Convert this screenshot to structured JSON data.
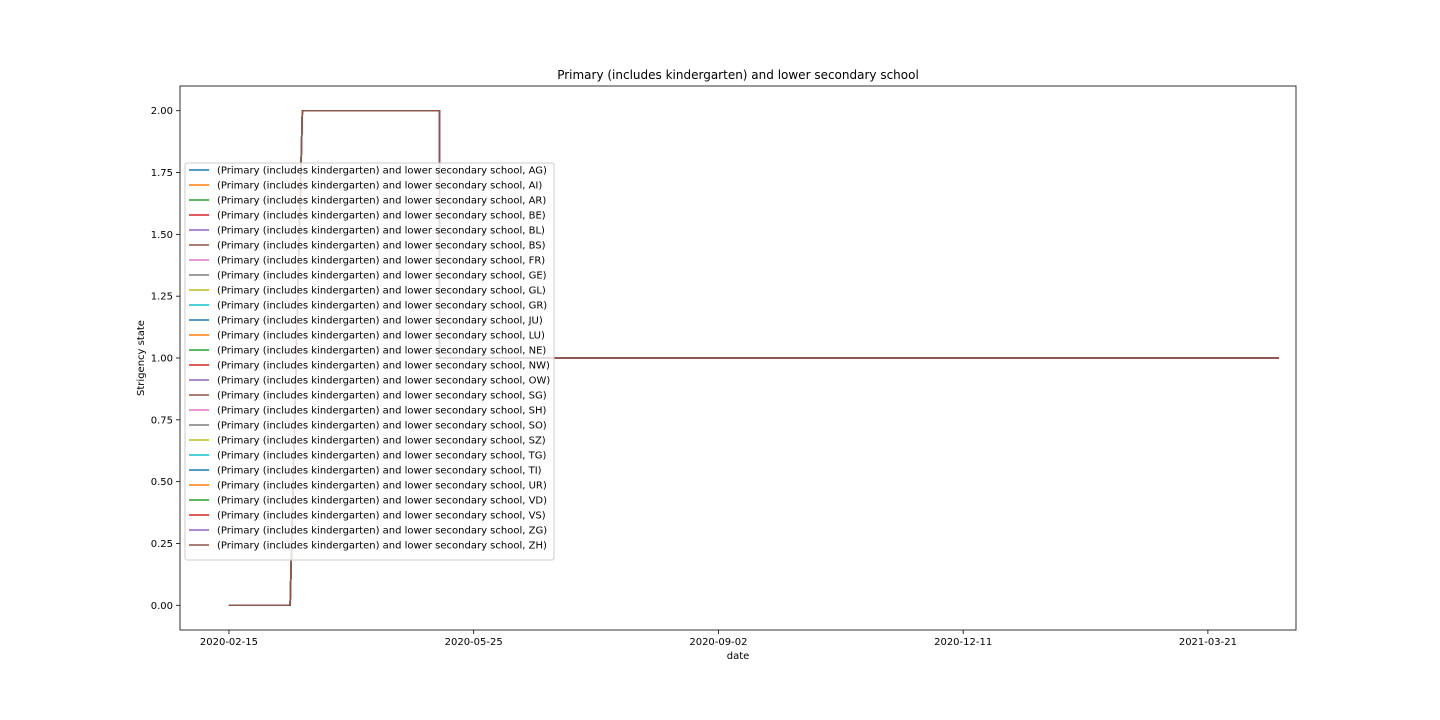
{
  "chart_data": {
    "type": "line",
    "title": "Primary (includes kindergarten) and lower secondary school",
    "xlabel": "date",
    "ylabel": "Strigency state",
    "x_ticks": [
      "2020-02-15",
      "2020-05-25",
      "2020-09-02",
      "2020-12-11",
      "2021-03-21"
    ],
    "y_ticks": [
      "0.00",
      "0.25",
      "0.50",
      "0.75",
      "1.00",
      "1.25",
      "1.50",
      "1.75",
      "2.00"
    ],
    "xlim": [
      "2020-01-26",
      "2021-04-26"
    ],
    "ylim": [
      -0.1,
      2.1
    ],
    "grid": false,
    "legend_position": "upper left",
    "x": [
      "2020-02-15",
      "2020-03-11",
      "2020-03-16",
      "2020-05-11",
      "2020-05-11",
      "2021-04-19"
    ],
    "series": [
      {
        "name": "(Primary (includes kindergarten) and lower secondary school, AG)",
        "color": "#1f77b4",
        "values": [
          0,
          0,
          2,
          2,
          1,
          1
        ]
      },
      {
        "name": "(Primary (includes kindergarten) and lower secondary school, AI)",
        "color": "#ff7f0e",
        "values": [
          0,
          0,
          2,
          2,
          1,
          1
        ]
      },
      {
        "name": "(Primary (includes kindergarten) and lower secondary school, AR)",
        "color": "#2ca02c",
        "values": [
          0,
          0,
          2,
          2,
          1,
          1
        ]
      },
      {
        "name": "(Primary (includes kindergarten) and lower secondary school, BE)",
        "color": "#d62728",
        "values": [
          0,
          0,
          2,
          2,
          1,
          1
        ]
      },
      {
        "name": "(Primary (includes kindergarten) and lower secondary school, BL)",
        "color": "#9467bd",
        "values": [
          0,
          0,
          2,
          2,
          1,
          1
        ]
      },
      {
        "name": "(Primary (includes kindergarten) and lower secondary school, BS)",
        "color": "#8c564b",
        "values": [
          0,
          0,
          2,
          2,
          1,
          1
        ]
      },
      {
        "name": "(Primary (includes kindergarten) and lower secondary school, FR)",
        "color": "#e377c2",
        "values": [
          0,
          0,
          2,
          2,
          1,
          1
        ]
      },
      {
        "name": "(Primary (includes kindergarten) and lower secondary school, GE)",
        "color": "#7f7f7f",
        "values": [
          0,
          0,
          2,
          2,
          1,
          1
        ]
      },
      {
        "name": "(Primary (includes kindergarten) and lower secondary school, GL)",
        "color": "#bcbd22",
        "values": [
          0,
          0,
          2,
          2,
          1,
          1
        ]
      },
      {
        "name": "(Primary (includes kindergarten) and lower secondary school, GR)",
        "color": "#17becf",
        "values": [
          0,
          0,
          2,
          2,
          1,
          1
        ]
      },
      {
        "name": "(Primary (includes kindergarten) and lower secondary school, JU)",
        "color": "#1f77b4",
        "values": [
          0,
          0,
          2,
          2,
          1,
          1
        ]
      },
      {
        "name": "(Primary (includes kindergarten) and lower secondary school, LU)",
        "color": "#ff7f0e",
        "values": [
          0,
          0,
          2,
          2,
          1,
          1
        ]
      },
      {
        "name": "(Primary (includes kindergarten) and lower secondary school, NE)",
        "color": "#2ca02c",
        "values": [
          0,
          0,
          2,
          2,
          1,
          1
        ]
      },
      {
        "name": "(Primary (includes kindergarten) and lower secondary school, NW)",
        "color": "#d62728",
        "values": [
          0,
          0,
          2,
          2,
          1,
          1
        ]
      },
      {
        "name": "(Primary (includes kindergarten) and lower secondary school, OW)",
        "color": "#9467bd",
        "values": [
          0,
          0,
          2,
          2,
          1,
          1
        ]
      },
      {
        "name": "(Primary (includes kindergarten) and lower secondary school, SG)",
        "color": "#8c564b",
        "values": [
          0,
          0,
          2,
          2,
          1,
          1
        ]
      },
      {
        "name": "(Primary (includes kindergarten) and lower secondary school, SH)",
        "color": "#e377c2",
        "values": [
          0,
          0,
          2,
          2,
          1,
          1
        ]
      },
      {
        "name": "(Primary (includes kindergarten) and lower secondary school, SO)",
        "color": "#7f7f7f",
        "values": [
          0,
          0,
          2,
          2,
          1,
          1
        ]
      },
      {
        "name": "(Primary (includes kindergarten) and lower secondary school, SZ)",
        "color": "#bcbd22",
        "values": [
          0,
          0,
          2,
          2,
          1,
          1
        ]
      },
      {
        "name": "(Primary (includes kindergarten) and lower secondary school, TG)",
        "color": "#17becf",
        "values": [
          0,
          0,
          2,
          2,
          1,
          1
        ]
      },
      {
        "name": "(Primary (includes kindergarten) and lower secondary school, TI)",
        "color": "#1f77b4",
        "values": [
          0,
          0,
          2,
          2,
          1,
          1
        ]
      },
      {
        "name": "(Primary (includes kindergarten) and lower secondary school, UR)",
        "color": "#ff7f0e",
        "values": [
          0,
          0,
          2,
          2,
          1,
          1
        ]
      },
      {
        "name": "(Primary (includes kindergarten) and lower secondary school, VD)",
        "color": "#2ca02c",
        "values": [
          0,
          0,
          2,
          2,
          1,
          1
        ]
      },
      {
        "name": "(Primary (includes kindergarten) and lower secondary school, VS)",
        "color": "#d62728",
        "values": [
          0,
          0,
          2,
          2,
          1,
          1
        ]
      },
      {
        "name": "(Primary (includes kindergarten) and lower secondary school, ZG)",
        "color": "#9467bd",
        "values": [
          0,
          0,
          2,
          2,
          1,
          1
        ]
      },
      {
        "name": "(Primary (includes kindergarten) and lower secondary school, ZH)",
        "color": "#8c564b",
        "values": [
          0,
          0,
          2,
          2,
          1,
          1
        ]
      }
    ]
  }
}
